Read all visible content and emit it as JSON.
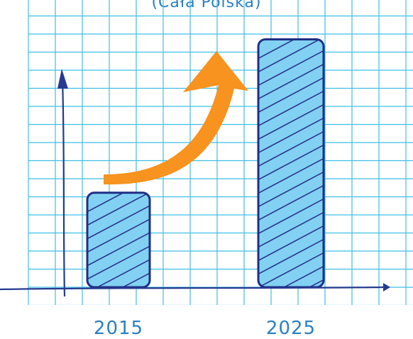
{
  "chart_data": {
    "type": "bar",
    "subtitle": "(Cała Polska)",
    "categories": [
      "2015",
      "2025"
    ],
    "values": [
      4.5,
      11.8
    ],
    "ylim": [
      0,
      13
    ],
    "grid": true,
    "annotation": "upward-trend-arrow",
    "colors": {
      "bar_fill": "#82d1f2",
      "bar_outline": "#1f2f86",
      "hatch": "#2a3590",
      "grid": "#3fbfe6",
      "axis": "#263a8f",
      "trend_arrow": "#f7931e",
      "text": "#2b7fc3"
    }
  }
}
